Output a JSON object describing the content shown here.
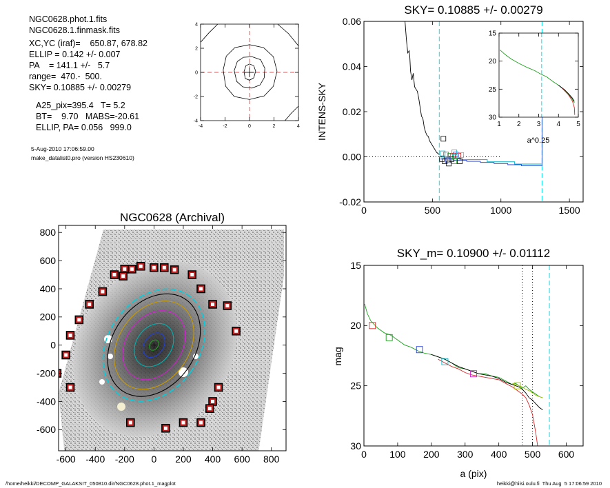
{
  "info": {
    "lines1": [
      "NGC0628.phot.1.fits",
      "NGC0628.1.finmask.fits",
      "XC,YC (iraf)=    650.87, 678.82",
      "ELLIP = 0.142 +/- 0.007",
      "PA    = 141.1 +/-   5.7",
      "range=  470.-  500.",
      "SKY= 0.10885 +/- 0.00279"
    ],
    "lines2": [
      "A25_pix=395.4   T= 5.2",
      "BT=    9.70   MABS=-20.61",
      "ELLIP, PA= 0.056   999.0"
    ],
    "date": "5-Aug-2010 17:06:59.00",
    "program": "make_datalist0.pro (version HS230610)"
  },
  "footer": {
    "left": "/home/heikki/DECOMP_GALAKSIT_050810.dir/NGC0628.phot.1_magplot",
    "right": "heikki@hiisi.oulu.fi  Thu Aug  5 17:06:59 2010"
  },
  "chart_data": [
    {
      "id": "contour",
      "type": "contour",
      "x_ticks": [
        -4,
        -2,
        0,
        2,
        4
      ],
      "y_ticks": [
        -4,
        -2,
        0,
        2,
        4
      ],
      "xlim": [
        -4,
        4
      ],
      "ylim": [
        -4,
        4
      ],
      "contours": [
        [
          [
            -0.45,
            0.05
          ],
          [
            -0.3,
            0.55
          ],
          [
            0.0,
            0.7
          ],
          [
            0.35,
            0.55
          ],
          [
            0.5,
            0.1
          ],
          [
            0.35,
            -0.45
          ],
          [
            0.0,
            -0.65
          ],
          [
            -0.35,
            -0.5
          ]
        ],
        [
          [
            -1.25,
            0.15
          ],
          [
            -1.0,
            0.9
          ],
          [
            -0.5,
            1.25
          ],
          [
            0.2,
            1.3
          ],
          [
            0.9,
            1.05
          ],
          [
            1.25,
            0.35
          ],
          [
            1.2,
            -0.45
          ],
          [
            0.85,
            -1.05
          ],
          [
            0.2,
            -1.3
          ],
          [
            -0.55,
            -1.2
          ],
          [
            -1.05,
            -0.75
          ]
        ],
        [
          [
            -2.15,
            0.2
          ],
          [
            -1.9,
            1.35
          ],
          [
            -1.2,
            2.05
          ],
          [
            0.0,
            2.3
          ],
          [
            1.15,
            2.05
          ],
          [
            1.95,
            1.3
          ],
          [
            2.25,
            0.1
          ],
          [
            1.95,
            -1.15
          ],
          [
            1.2,
            -1.95
          ],
          [
            0.0,
            -2.25
          ],
          [
            -1.25,
            -2.0
          ],
          [
            -1.95,
            -1.15
          ]
        ]
      ],
      "corner_arc": [
        [
          -4,
          2.5
        ],
        [
          -3.3,
          3.3
        ],
        [
          -2.6,
          4
        ]
      ],
      "corner_arc2": [
        [
          2.3,
          4
        ],
        [
          3.2,
          3.2
        ],
        [
          4,
          2.2
        ]
      ],
      "corner_arc3": [
        [
          2.9,
          -4
        ],
        [
          3.4,
          -3.4
        ],
        [
          4,
          -2.8
        ]
      ]
    },
    {
      "id": "sky",
      "type": "line",
      "title": "SKY= 0.10885 +/- 0.00279",
      "ylabel": "INTENS-SKY",
      "xlim": [
        0,
        1600
      ],
      "ylim": [
        -0.02,
        0.06
      ],
      "x_ticks": [
        0,
        500,
        1000,
        1500
      ],
      "y_ticks": [
        -0.02,
        0.0,
        0.02,
        0.04,
        0.06
      ],
      "y_tick_labels": [
        "-0.02",
        "0.00",
        "0.02",
        "0.04",
        "0.06"
      ],
      "vlines": [
        {
          "x": 550,
          "color": "#00e5ee"
        },
        {
          "x": 1300,
          "color": "#00e5ee"
        }
      ],
      "hline_dotted": 0.0,
      "series": [
        {
          "color": "#000000",
          "x": [
            300,
            310,
            320,
            330,
            335,
            340,
            350,
            360,
            370,
            380,
            390,
            400,
            410,
            420,
            430,
            440,
            450,
            460,
            470,
            480,
            490,
            500,
            510,
            520,
            530,
            540,
            550
          ],
          "y": [
            0.06,
            0.052,
            0.046,
            0.047,
            0.044,
            0.038,
            0.034,
            0.037,
            0.031,
            0.03,
            0.029,
            0.026,
            0.022,
            0.018,
            0.017,
            0.013,
            0.011,
            0.0095,
            0.009,
            0.007,
            0.006,
            0.005,
            0.004,
            0.003,
            0.002,
            0.0015,
            0.001
          ]
        },
        {
          "color": "#1f3fd6",
          "x": [
            560,
            650,
            650,
            750,
            750,
            850,
            850,
            950,
            950,
            1050,
            1050,
            1150,
            1150,
            1290,
            1290,
            1300,
            1300
          ],
          "y": [
            -0.001,
            -0.001,
            -0.0015,
            -0.0015,
            -0.002,
            -0.002,
            -0.0025,
            -0.0025,
            -0.003,
            -0.003,
            -0.0035,
            -0.0035,
            -0.004,
            -0.004,
            -0.004,
            -0.004,
            0.05
          ]
        },
        {
          "color": "#00b6c8",
          "x": [
            560,
            700,
            700,
            900,
            900,
            1100,
            1100,
            1300
          ],
          "y": [
            -0.0005,
            -0.0005,
            -0.0012,
            -0.0012,
            -0.0022,
            -0.0022,
            -0.0032,
            -0.0032
          ]
        }
      ],
      "markers": [
        {
          "x": 580,
          "y": 0.008,
          "color": "#000000"
        },
        {
          "x": 570,
          "y": -0.001,
          "color": "#000000"
        },
        {
          "x": 590,
          "y": -0.002,
          "color": "#000000"
        },
        {
          "x": 600,
          "y": 0.001,
          "color": "#5a5a5a"
        },
        {
          "x": 615,
          "y": -0.0015,
          "color": "#1f3fd6"
        },
        {
          "x": 630,
          "y": 0.0005,
          "color": "#1aa11a"
        },
        {
          "x": 640,
          "y": -0.001,
          "color": "#000000"
        },
        {
          "x": 650,
          "y": 0.0005,
          "color": "#d62728"
        },
        {
          "x": 660,
          "y": -0.002,
          "color": "#1aa11a"
        },
        {
          "x": 670,
          "y": 0.001,
          "color": "#1f3fd6"
        },
        {
          "x": 690,
          "y": 0.0005,
          "color": "#d62728"
        },
        {
          "x": 700,
          "y": -0.002,
          "color": "#000000"
        },
        {
          "x": 620,
          "y": -0.003,
          "color": "#000000"
        },
        {
          "x": 575,
          "y": 0.0015,
          "color": "#00b6c8"
        },
        {
          "x": 710,
          "y": 0.0008,
          "color": "#a0a0a0"
        },
        {
          "x": 660,
          "y": 0.002,
          "color": "#00b6c8"
        }
      ],
      "inset": {
        "xlabel": "a^0.25",
        "xlim": [
          1,
          5
        ],
        "ylim": [
          30,
          15
        ],
        "x_ticks": [
          1,
          2,
          3,
          4,
          5
        ],
        "y_ticks": [
          15,
          20,
          25,
          30
        ],
        "vline": 3.15,
        "series": [
          {
            "color": "#1aa11a",
            "x": [
              1.05,
              1.3,
              1.6,
              2.0,
              2.4,
              2.8,
              3.1,
              3.4,
              3.7,
              4.0,
              4.3,
              4.5,
              4.7,
              4.8
            ],
            "y": [
              18.0,
              18.8,
              19.6,
              20.4,
              21.1,
              21.7,
              22.3,
              22.8,
              23.6,
              24.3,
              25.2,
              25.9,
              26.8,
              27.4
            ]
          },
          {
            "color": "#000000",
            "x": [
              4.0,
              4.3,
              4.5,
              4.7,
              4.8
            ],
            "y": [
              24.3,
              25.1,
              25.8,
              26.6,
              27.2
            ]
          },
          {
            "color": "#d62728",
            "x": [
              4.2,
              4.5,
              4.7,
              4.8,
              4.82
            ],
            "y": [
              24.9,
              26.0,
              27.1,
              28.3,
              29.6
            ]
          }
        ]
      }
    },
    {
      "id": "galaxy",
      "type": "image",
      "title": "NGC0628 (Archival)",
      "xlim": [
        -650,
        900
      ],
      "ylim": [
        -750,
        850
      ],
      "x_ticks": [
        -600,
        -400,
        -200,
        0,
        200,
        400,
        600,
        800
      ],
      "y_ticks": [
        -600,
        -400,
        -200,
        0,
        200,
        400,
        600,
        800
      ],
      "mask_squares": [
        [
          -200,
          540
        ],
        [
          -150,
          540
        ],
        [
          -90,
          560
        ],
        [
          0,
          550
        ],
        [
          70,
          550
        ],
        [
          140,
          535
        ],
        [
          -210,
          490
        ],
        [
          -270,
          500
        ],
        [
          -350,
          380
        ],
        [
          -440,
          290
        ],
        [
          -510,
          180
        ],
        [
          -570,
          70
        ],
        [
          -600,
          -70
        ],
        [
          -660,
          -200
        ],
        [
          -570,
          -300
        ],
        [
          260,
          500
        ],
        [
          320,
          400
        ],
        [
          400,
          290
        ],
        [
          500,
          280
        ],
        [
          560,
          100
        ],
        [
          440,
          -300
        ],
        [
          400,
          -400
        ],
        [
          320,
          -550
        ],
        [
          200,
          -550
        ],
        [
          80,
          -590
        ],
        [
          -160,
          -550
        ],
        [
          380,
          -450
        ]
      ],
      "ellipses": [
        {
          "rx": 310,
          "ry": 430,
          "color": "#00d0e0",
          "dash": true
        },
        {
          "rx": 280,
          "ry": 395,
          "color": "#000000",
          "dash": false
        },
        {
          "rx": 240,
          "ry": 340,
          "color": "#c99a00",
          "dash": false
        },
        {
          "rx": 190,
          "ry": 265,
          "color": "#d020d0",
          "dash": false
        },
        {
          "rx": 120,
          "ry": 165,
          "color": "#00b0b0",
          "dash": false
        },
        {
          "rx": 65,
          "ry": 95,
          "color": "#1f3fd6",
          "dash": false
        },
        {
          "rx": 28,
          "ry": 40,
          "color": "#1aa11a",
          "dash": false
        }
      ]
    },
    {
      "id": "mag",
      "type": "line",
      "title": "SKY_m=  0.10900 +/- 0.01112",
      "xlabel": "a (pix)",
      "ylabel": "mag",
      "xlim": [
        0,
        650
      ],
      "ylim": [
        30,
        15
      ],
      "x_ticks": [
        0,
        100,
        200,
        300,
        400,
        500,
        600
      ],
      "y_ticks": [
        15,
        20,
        25,
        30
      ],
      "vlines": [
        {
          "x": 470,
          "color": "#000000",
          "dotted": true
        },
        {
          "x": 500,
          "color": "#000000",
          "dotted": true
        },
        {
          "x": 550,
          "color": "#00e5ee",
          "dotted": false
        }
      ],
      "series": [
        {
          "color": "#1aa11a",
          "x": [
            2,
            10,
            20,
            40,
            60,
            80,
            100,
            120,
            140,
            160,
            180,
            200,
            220,
            240,
            260,
            280,
            300,
            320,
            340,
            360,
            380,
            400,
            420,
            440,
            450,
            460,
            470,
            480,
            490,
            500,
            510,
            520,
            530
          ],
          "y": [
            18.2,
            19.0,
            19.6,
            20.2,
            20.6,
            20.8,
            21.2,
            21.6,
            21.8,
            22.1,
            22.3,
            22.4,
            22.6,
            22.8,
            23.1,
            23.5,
            23.6,
            23.8,
            24.0,
            24.0,
            24.2,
            24.3,
            24.6,
            24.9,
            24.8,
            25.0,
            25.2,
            25.0,
            25.3,
            25.5,
            25.7,
            25.9,
            26.0
          ]
        },
        {
          "color": "#000000",
          "x": [
            200,
            220,
            240,
            260,
            280,
            300,
            320,
            340,
            360,
            380,
            400,
            420,
            440,
            450,
            460,
            470,
            480,
            490,
            500,
            510,
            520,
            530
          ],
          "y": [
            22.4,
            22.6,
            22.8,
            23.1,
            23.4,
            23.6,
            23.8,
            24.0,
            24.1,
            24.2,
            24.4,
            24.7,
            24.9,
            25.0,
            25.1,
            25.3,
            25.6,
            26.0,
            26.2,
            26.5,
            26.8,
            27.0
          ]
        },
        {
          "color": "#d62728",
          "x": [
            220,
            240,
            260,
            280,
            300,
            320,
            340,
            360,
            380,
            400,
            420,
            440,
            450,
            460,
            470,
            480,
            490,
            500,
            505,
            510,
            515
          ],
          "y": [
            22.8,
            23.1,
            23.4,
            23.6,
            23.9,
            24.1,
            24.2,
            24.3,
            24.4,
            24.5,
            24.8,
            25.1,
            25.3,
            25.5,
            25.7,
            26.0,
            26.6,
            27.4,
            28.2,
            29.0,
            30.0
          ]
        },
        {
          "color": "#a0c000",
          "x": [
            440,
            450,
            460,
            470,
            480,
            490,
            500,
            510,
            520,
            530
          ],
          "y": [
            24.8,
            24.9,
            25.0,
            25.1,
            25.3,
            25.4,
            25.6,
            25.8,
            25.9,
            26.0
          ]
        }
      ],
      "markers": [
        {
          "x": 25,
          "y": 20.0,
          "color": "#d62728"
        },
        {
          "x": 75,
          "y": 21.0,
          "color": "#1aa11a"
        },
        {
          "x": 165,
          "y": 22.0,
          "color": "#1f3fd6"
        },
        {
          "x": 240,
          "y": 23.0,
          "color": "#00b6c8"
        },
        {
          "x": 325,
          "y": 24.0,
          "color": "#d020d0"
        },
        {
          "x": 455,
          "y": 25.0,
          "color": "#a0c000"
        }
      ]
    }
  ]
}
